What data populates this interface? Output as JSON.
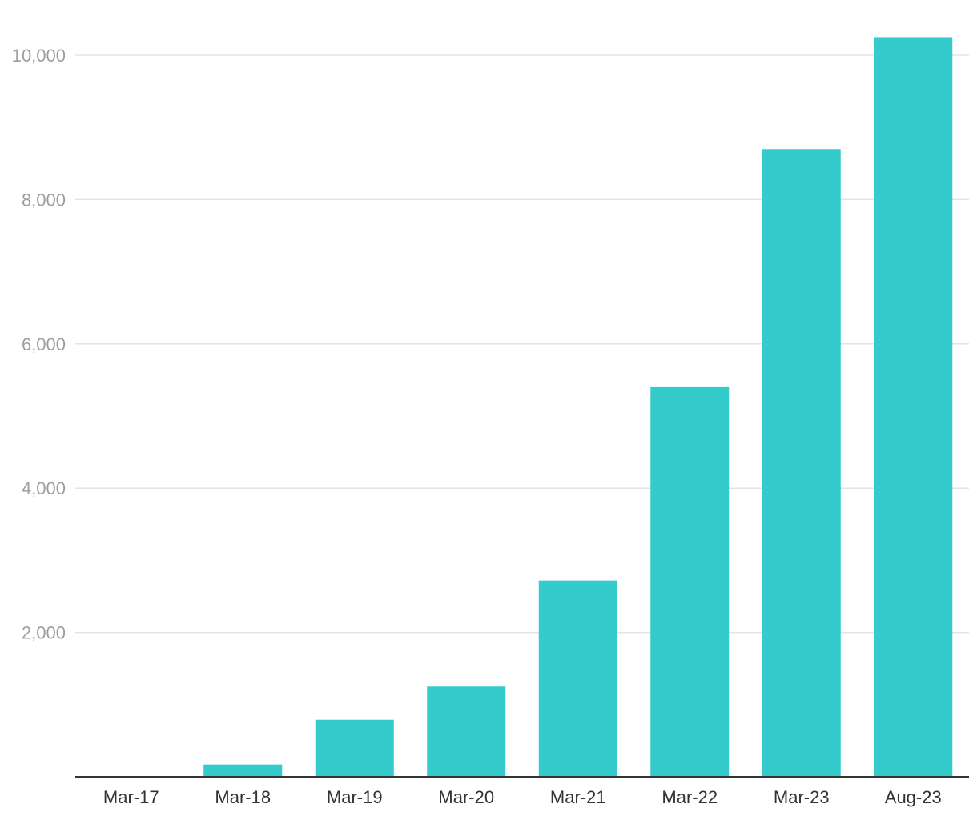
{
  "chart_data": {
    "type": "bar",
    "title": "",
    "xlabel": "",
    "ylabel": "",
    "categories": [
      "Mar-17",
      "Mar-18",
      "Mar-19",
      "Mar-20",
      "Mar-21",
      "Mar-22",
      "Mar-23",
      "Aug-23"
    ],
    "values": [
      0,
      170,
      790,
      1250,
      2720,
      5400,
      8700,
      10250
    ],
    "ylim": [
      0,
      10250
    ],
    "yticks": [
      2000,
      4000,
      6000,
      8000,
      10000
    ],
    "ytick_labels": [
      "2,000",
      "4,000",
      "6,000",
      "8,000",
      "10,000"
    ],
    "grid": true,
    "legend": "none",
    "bar_color": "#33CBCB"
  }
}
